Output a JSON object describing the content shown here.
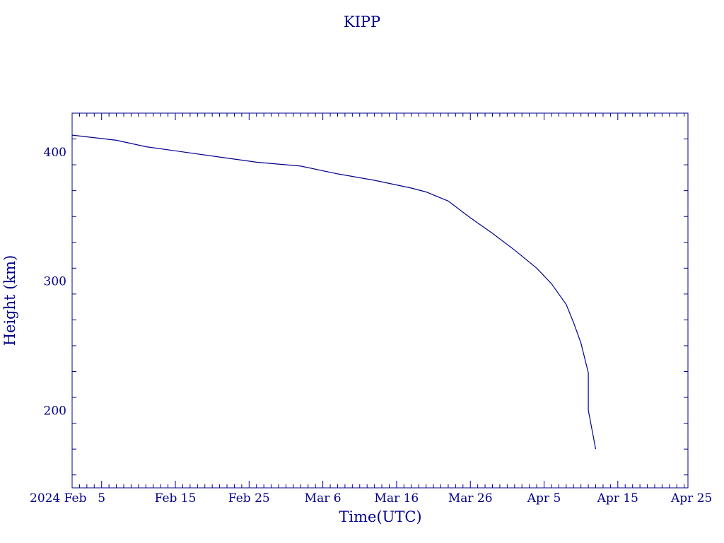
{
  "chart_data": {
    "type": "line",
    "title": "KIPP",
    "xlabel": "Time(UTC)",
    "ylabel": "Height (km)",
    "color": "#00008b",
    "x_axis_start": "2024-02-01",
    "xlim": [
      "2024-02-01",
      "2024-04-25"
    ],
    "ylim": [
      140,
      430
    ],
    "x_tick_labels": [
      {
        "date": "2024-02-05",
        "label": "5"
      },
      {
        "date": "2024-02-15",
        "label": "Feb 15"
      },
      {
        "date": "2024-02-25",
        "label": "Feb 25"
      },
      {
        "date": "2024-03-06",
        "label": "Mar  6"
      },
      {
        "date": "2024-03-16",
        "label": "Mar 16"
      },
      {
        "date": "2024-03-26",
        "label": "Mar 26"
      },
      {
        "date": "2024-04-05",
        "label": "Apr  5"
      },
      {
        "date": "2024-04-15",
        "label": "Apr 15"
      },
      {
        "date": "2024-04-25",
        "label": "Apr 25"
      }
    ],
    "x_origin_label": "2024 Feb",
    "y_ticks": [
      200,
      300,
      400
    ],
    "series": [
      {
        "x": [
          "2024-02-01",
          "2024-02-07",
          "2024-02-11",
          "2024-02-16",
          "2024-02-21",
          "2024-02-26",
          "2024-03-03",
          "2024-03-08",
          "2024-03-13",
          "2024-03-18",
          "2024-03-20",
          "2024-03-23",
          "2024-03-26",
          "2024-03-29",
          "2024-04-01",
          "2024-04-04",
          "2024-04-06",
          "2024-04-08",
          "2024-04-09",
          "2024-04-10",
          "2024-04-11",
          "2024-04-11",
          "2024-04-12"
        ],
        "y": [
          413,
          409,
          404,
          400,
          396,
          392,
          389,
          383,
          378,
          372,
          369,
          362,
          349,
          337,
          324,
          310,
          298,
          282,
          268,
          252,
          229,
          200,
          170
        ]
      }
    ]
  }
}
